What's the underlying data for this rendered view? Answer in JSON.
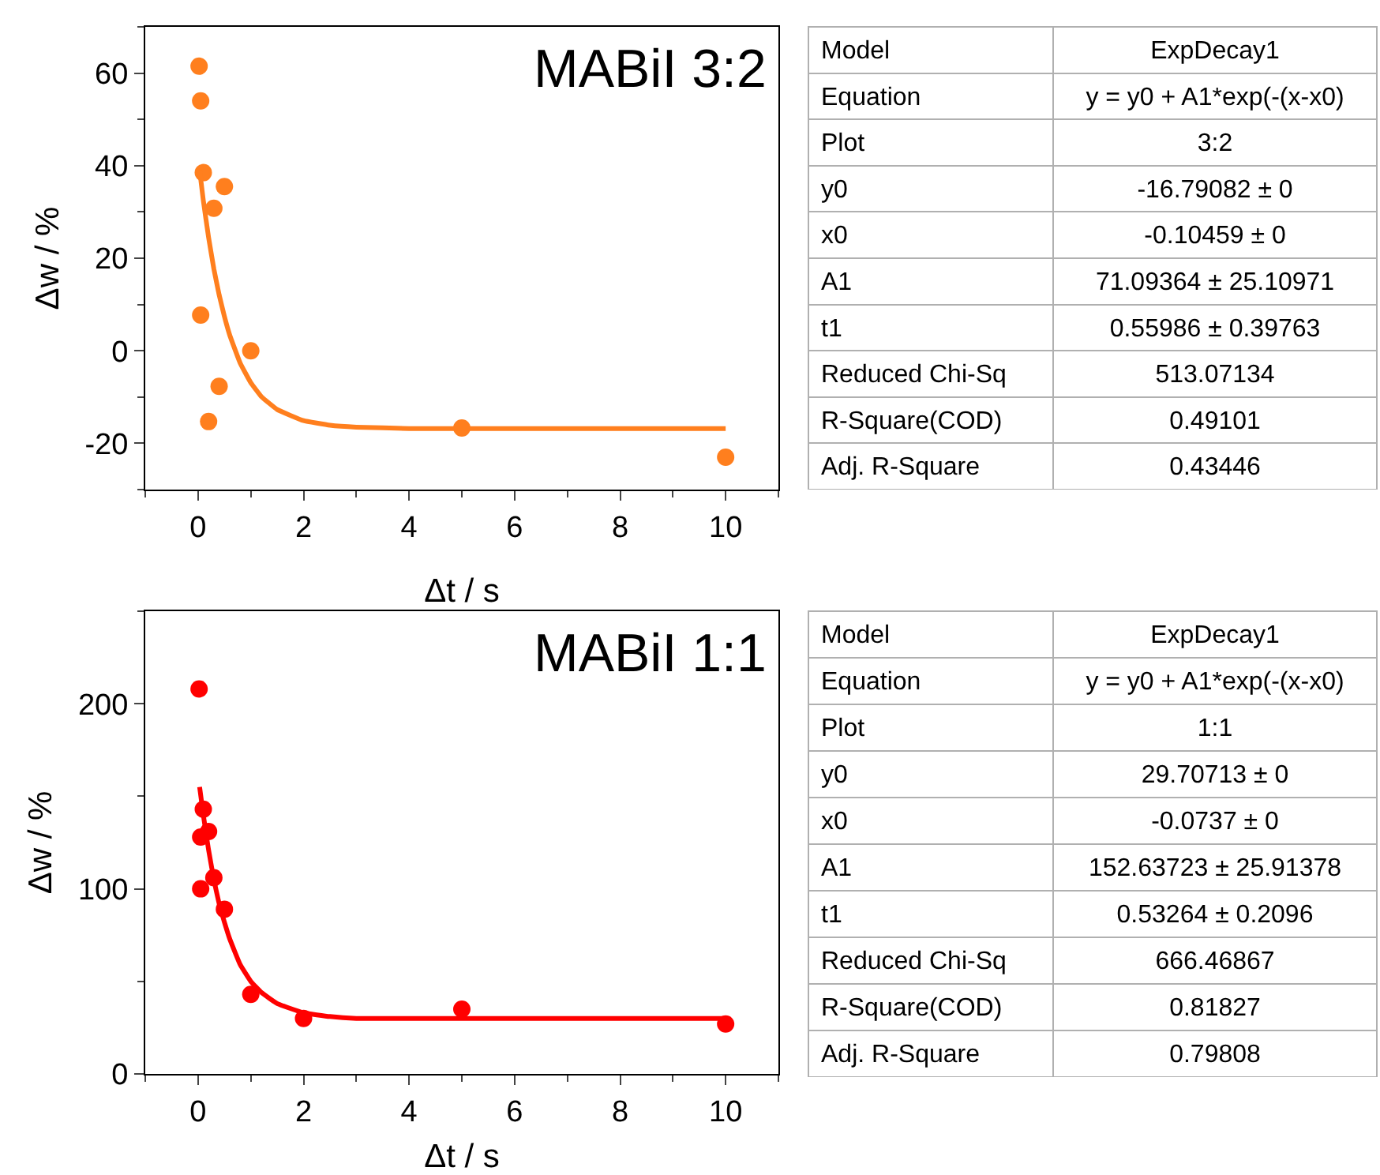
{
  "chart_data": [
    {
      "type": "scatter",
      "xlabel": "Δt / s",
      "ylabel": "Δw / %",
      "annotations": [
        "MABiI 3:2"
      ],
      "xlim": [
        -1,
        11
      ],
      "xticks": [
        0,
        2,
        4,
        6,
        8,
        10
      ],
      "ylim": [
        -30,
        70
      ],
      "yticks": [
        -20,
        0,
        20,
        40,
        60
      ],
      "series": [
        {
          "type": "scatter",
          "marker": "circle",
          "color": "#ff7f1e",
          "x": [
            0.02,
            0.05,
            0.1,
            0.5,
            0.3,
            0.05,
            1,
            0.4,
            0.2,
            5,
            10
          ],
          "values": [
            61.5,
            54,
            38.5,
            35.5,
            30.8,
            7.7,
            0,
            -7.7,
            -15.3,
            -16.7,
            -23
          ]
        },
        {
          "type": "line",
          "marker": "none",
          "line_style": "solid",
          "color": "#ff7f1e",
          "x": [
            0.03,
            0.1,
            0.2,
            0.3,
            0.4,
            0.5,
            0.6,
            0.8,
            1.0,
            1.2,
            1.5,
            2,
            2.5,
            3,
            4,
            6,
            8,
            10
          ],
          "values": [
            39.1,
            32.5,
            24.5,
            17.7,
            12.1,
            7.4,
            3.4,
            -2.7,
            -6.9,
            -9.9,
            -12.7,
            -15.1,
            -16.1,
            -16.5,
            -16.8,
            -16.8,
            -16.8,
            -16.8
          ]
        }
      ]
    },
    {
      "type": "other",
      "annotations": [
        "Model",
        "ExpDecay1",
        "Equation",
        "y = y0 + A1*exp(-(x-x0)",
        "Plot",
        "3:2",
        "y0",
        "-16.79082 ± 0",
        "x0",
        "-0.10459 ± 0",
        "A1",
        "71.09364 ± 25.10971",
        "t1",
        "0.55986 ± 0.39763",
        "Reduced Chi-Sq",
        "513.07134",
        "R-Square(COD)",
        "0.49101",
        "Adj. R-Square",
        "0.43446"
      ]
    },
    {
      "type": "scatter",
      "xlabel": "Δt / s",
      "ylabel": "Δw / %",
      "annotations": [
        "MABiI 1:1"
      ],
      "xlim": [
        -1,
        11
      ],
      "xticks": [
        0,
        2,
        4,
        6,
        8,
        10
      ],
      "ylim": [
        0,
        250
      ],
      "yticks": [
        0,
        100,
        200
      ],
      "series": [
        {
          "type": "scatter",
          "marker": "circle",
          "color": "#ff0000",
          "x": [
            0.02,
            0.1,
            0.05,
            0.2,
            0.3,
            0.05,
            0.5,
            1,
            2,
            5,
            10
          ],
          "values": [
            208,
            143,
            128,
            131,
            106,
            100,
            89,
            43,
            30,
            35,
            27
          ]
        },
        {
          "type": "line",
          "marker": "none",
          "line_style": "solid",
          "color": "#ff0000",
          "x": [
            0.03,
            0.1,
            0.2,
            0.3,
            0.4,
            0.5,
            0.6,
            0.8,
            1.0,
            1.2,
            1.5,
            2,
            2.5,
            3,
            4,
            6,
            8,
            10
          ],
          "values": [
            155,
            140,
            121,
            105,
            92,
            82,
            73,
            59,
            50,
            44,
            38,
            33,
            31,
            30,
            30,
            30,
            30,
            30
          ]
        }
      ]
    },
    {
      "type": "other",
      "annotations": [
        "Model",
        "ExpDecay1",
        "Equation",
        "y = y0 + A1*exp(-(x-x0)",
        "Plot",
        "1:1",
        "y0",
        "29.70713 ± 0",
        "x0",
        "-0.0737 ± 0",
        "A1",
        "152.63723 ± 25.91378",
        "t1",
        "0.53264 ± 0.2096",
        "Reduced Chi-Sq",
        "666.46867",
        "R-Square(COD)",
        "0.81827",
        "Adj. R-Square",
        "0.79808"
      ]
    }
  ]
}
